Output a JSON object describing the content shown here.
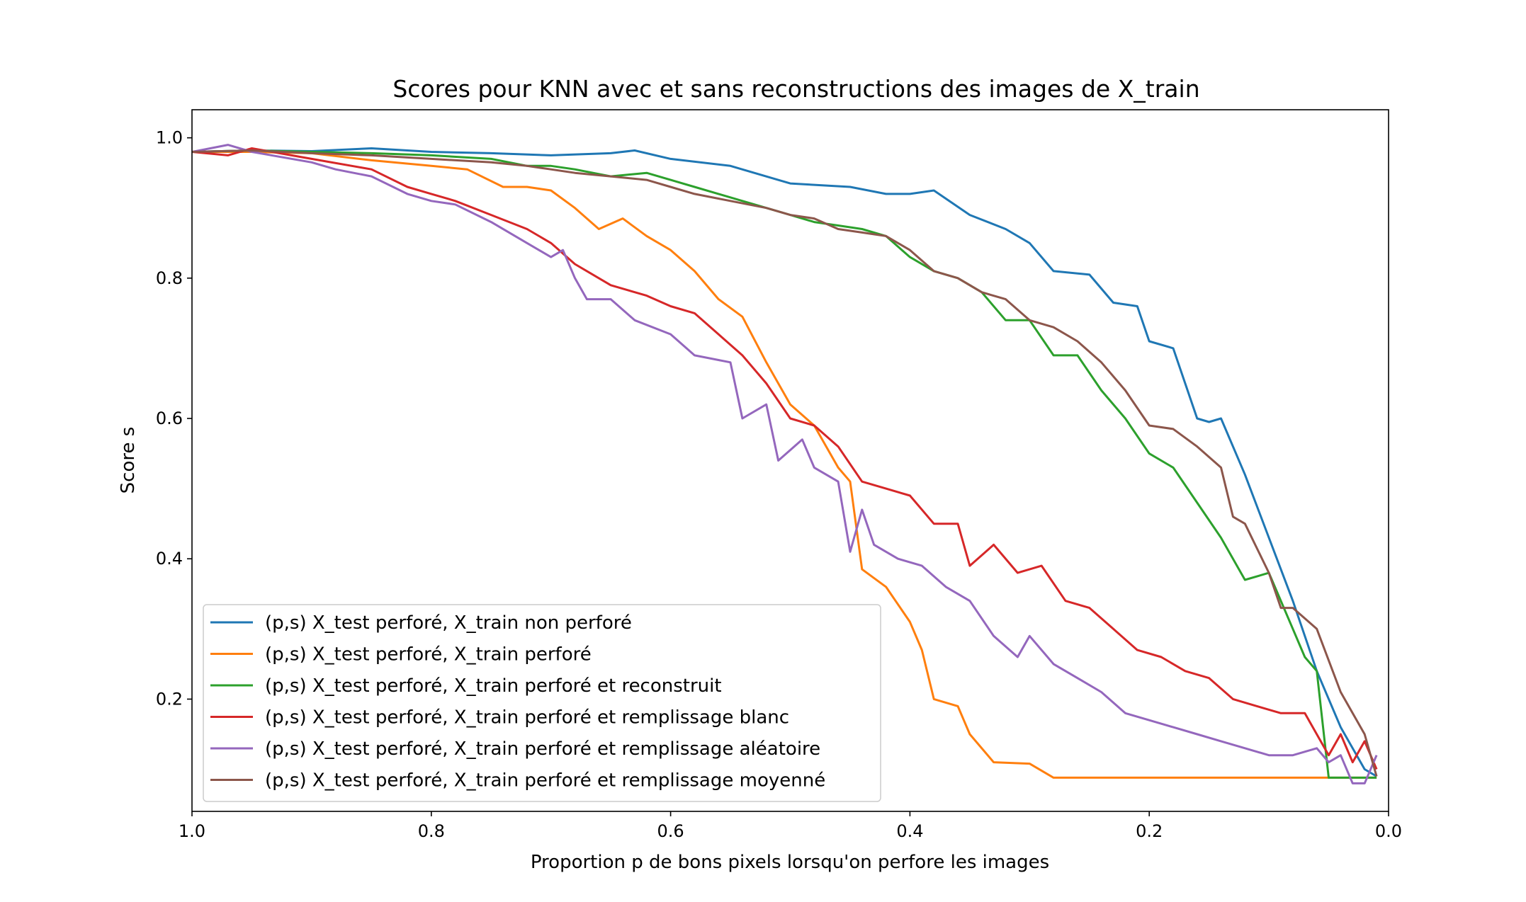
{
  "chart_data": {
    "type": "line",
    "title": "Scores pour KNN avec et sans reconstructions des images de X_train",
    "xlabel": "Proportion p de bons pixels lorsqu'on perfore les images",
    "ylabel": "Score s",
    "xlim": [
      1.0,
      0.0
    ],
    "ylim": [
      0.04,
      1.04
    ],
    "x_inverted": true,
    "grid": false,
    "legend_position": "lower-left",
    "x_ticks": [
      "1.0",
      "0.8",
      "0.6",
      "0.4",
      "0.2",
      "0.0"
    ],
    "y_ticks": [
      "0.2",
      "0.4",
      "0.6",
      "0.8",
      "1.0"
    ],
    "series": [
      {
        "name": "(p,s) X_test perforé, X_train non perforé",
        "color": "#1f77b4",
        "points": [
          [
            1.0,
            0.98
          ],
          [
            0.95,
            0.982
          ],
          [
            0.9,
            0.981
          ],
          [
            0.85,
            0.985
          ],
          [
            0.8,
            0.98
          ],
          [
            0.75,
            0.978
          ],
          [
            0.7,
            0.975
          ],
          [
            0.65,
            0.978
          ],
          [
            0.63,
            0.982
          ],
          [
            0.6,
            0.97
          ],
          [
            0.55,
            0.96
          ],
          [
            0.5,
            0.935
          ],
          [
            0.45,
            0.93
          ],
          [
            0.42,
            0.92
          ],
          [
            0.4,
            0.92
          ],
          [
            0.38,
            0.925
          ],
          [
            0.35,
            0.89
          ],
          [
            0.32,
            0.87
          ],
          [
            0.3,
            0.85
          ],
          [
            0.28,
            0.81
          ],
          [
            0.25,
            0.805
          ],
          [
            0.23,
            0.765
          ],
          [
            0.21,
            0.76
          ],
          [
            0.2,
            0.71
          ],
          [
            0.18,
            0.7
          ],
          [
            0.16,
            0.6
          ],
          [
            0.15,
            0.595
          ],
          [
            0.14,
            0.6
          ],
          [
            0.12,
            0.52
          ],
          [
            0.1,
            0.43
          ],
          [
            0.08,
            0.34
          ],
          [
            0.06,
            0.24
          ],
          [
            0.04,
            0.16
          ],
          [
            0.02,
            0.1
          ],
          [
            0.01,
            0.09
          ]
        ]
      },
      {
        "name": "(p,s) X_test perforé, X_train perforé",
        "color": "#ff7f0e",
        "points": [
          [
            1.0,
            0.98
          ],
          [
            0.95,
            0.98
          ],
          [
            0.9,
            0.978
          ],
          [
            0.85,
            0.968
          ],
          [
            0.8,
            0.96
          ],
          [
            0.77,
            0.955
          ],
          [
            0.74,
            0.93
          ],
          [
            0.72,
            0.93
          ],
          [
            0.7,
            0.925
          ],
          [
            0.68,
            0.9
          ],
          [
            0.66,
            0.87
          ],
          [
            0.64,
            0.885
          ],
          [
            0.62,
            0.86
          ],
          [
            0.6,
            0.84
          ],
          [
            0.58,
            0.81
          ],
          [
            0.56,
            0.77
          ],
          [
            0.54,
            0.745
          ],
          [
            0.52,
            0.68
          ],
          [
            0.5,
            0.62
          ],
          [
            0.48,
            0.59
          ],
          [
            0.46,
            0.53
          ],
          [
            0.45,
            0.51
          ],
          [
            0.44,
            0.385
          ],
          [
            0.42,
            0.36
          ],
          [
            0.4,
            0.31
          ],
          [
            0.39,
            0.27
          ],
          [
            0.38,
            0.2
          ],
          [
            0.36,
            0.19
          ],
          [
            0.35,
            0.15
          ],
          [
            0.33,
            0.11
          ],
          [
            0.3,
            0.108
          ],
          [
            0.28,
            0.088
          ],
          [
            0.25,
            0.088
          ],
          [
            0.2,
            0.088
          ],
          [
            0.1,
            0.088
          ],
          [
            0.01,
            0.088
          ]
        ]
      },
      {
        "name": "(p,s) X_test perforé, X_train perforé et reconstruit",
        "color": "#2ca02c",
        "points": [
          [
            1.0,
            0.98
          ],
          [
            0.95,
            0.982
          ],
          [
            0.9,
            0.98
          ],
          [
            0.85,
            0.978
          ],
          [
            0.8,
            0.975
          ],
          [
            0.75,
            0.97
          ],
          [
            0.72,
            0.96
          ],
          [
            0.7,
            0.96
          ],
          [
            0.68,
            0.955
          ],
          [
            0.65,
            0.945
          ],
          [
            0.62,
            0.95
          ],
          [
            0.6,
            0.94
          ],
          [
            0.58,
            0.93
          ],
          [
            0.56,
            0.92
          ],
          [
            0.54,
            0.91
          ],
          [
            0.52,
            0.9
          ],
          [
            0.5,
            0.89
          ],
          [
            0.48,
            0.88
          ],
          [
            0.46,
            0.875
          ],
          [
            0.44,
            0.87
          ],
          [
            0.42,
            0.86
          ],
          [
            0.4,
            0.83
          ],
          [
            0.38,
            0.81
          ],
          [
            0.36,
            0.8
          ],
          [
            0.34,
            0.78
          ],
          [
            0.32,
            0.74
          ],
          [
            0.3,
            0.74
          ],
          [
            0.28,
            0.69
          ],
          [
            0.26,
            0.69
          ],
          [
            0.24,
            0.64
          ],
          [
            0.22,
            0.6
          ],
          [
            0.2,
            0.55
          ],
          [
            0.18,
            0.53
          ],
          [
            0.16,
            0.48
          ],
          [
            0.14,
            0.43
          ],
          [
            0.12,
            0.37
          ],
          [
            0.1,
            0.38
          ],
          [
            0.08,
            0.3
          ],
          [
            0.07,
            0.26
          ],
          [
            0.06,
            0.24
          ],
          [
            0.05,
            0.088
          ],
          [
            0.03,
            0.088
          ],
          [
            0.01,
            0.088
          ]
        ]
      },
      {
        "name": "(p,s) X_test perforé, X_train perforé et remplissage blanc",
        "color": "#d62728",
        "points": [
          [
            1.0,
            0.98
          ],
          [
            0.97,
            0.975
          ],
          [
            0.95,
            0.985
          ],
          [
            0.9,
            0.97
          ],
          [
            0.85,
            0.955
          ],
          [
            0.82,
            0.93
          ],
          [
            0.8,
            0.92
          ],
          [
            0.78,
            0.91
          ],
          [
            0.75,
            0.89
          ],
          [
            0.72,
            0.87
          ],
          [
            0.7,
            0.85
          ],
          [
            0.68,
            0.82
          ],
          [
            0.65,
            0.79
          ],
          [
            0.62,
            0.775
          ],
          [
            0.6,
            0.76
          ],
          [
            0.58,
            0.75
          ],
          [
            0.56,
            0.72
          ],
          [
            0.54,
            0.69
          ],
          [
            0.52,
            0.65
          ],
          [
            0.5,
            0.6
          ],
          [
            0.48,
            0.59
          ],
          [
            0.46,
            0.56
          ],
          [
            0.44,
            0.51
          ],
          [
            0.42,
            0.5
          ],
          [
            0.4,
            0.49
          ],
          [
            0.38,
            0.45
          ],
          [
            0.36,
            0.45
          ],
          [
            0.35,
            0.39
          ],
          [
            0.33,
            0.42
          ],
          [
            0.31,
            0.38
          ],
          [
            0.29,
            0.39
          ],
          [
            0.27,
            0.34
          ],
          [
            0.25,
            0.33
          ],
          [
            0.23,
            0.3
          ],
          [
            0.21,
            0.27
          ],
          [
            0.19,
            0.26
          ],
          [
            0.17,
            0.24
          ],
          [
            0.15,
            0.23
          ],
          [
            0.13,
            0.2
          ],
          [
            0.11,
            0.19
          ],
          [
            0.09,
            0.18
          ],
          [
            0.07,
            0.18
          ],
          [
            0.05,
            0.12
          ],
          [
            0.04,
            0.15
          ],
          [
            0.03,
            0.11
          ],
          [
            0.02,
            0.14
          ],
          [
            0.01,
            0.1
          ]
        ]
      },
      {
        "name": "(p,s) X_test perforé, X_train perforé et remplissage aléatoire",
        "color": "#9467bd",
        "points": [
          [
            1.0,
            0.98
          ],
          [
            0.97,
            0.99
          ],
          [
            0.95,
            0.98
          ],
          [
            0.9,
            0.965
          ],
          [
            0.88,
            0.955
          ],
          [
            0.85,
            0.945
          ],
          [
            0.82,
            0.92
          ],
          [
            0.8,
            0.91
          ],
          [
            0.78,
            0.905
          ],
          [
            0.75,
            0.88
          ],
          [
            0.72,
            0.85
          ],
          [
            0.7,
            0.83
          ],
          [
            0.69,
            0.84
          ],
          [
            0.68,
            0.8
          ],
          [
            0.67,
            0.77
          ],
          [
            0.65,
            0.77
          ],
          [
            0.63,
            0.74
          ],
          [
            0.6,
            0.72
          ],
          [
            0.58,
            0.69
          ],
          [
            0.55,
            0.68
          ],
          [
            0.54,
            0.6
          ],
          [
            0.52,
            0.62
          ],
          [
            0.51,
            0.54
          ],
          [
            0.49,
            0.57
          ],
          [
            0.48,
            0.53
          ],
          [
            0.46,
            0.51
          ],
          [
            0.45,
            0.41
          ],
          [
            0.44,
            0.47
          ],
          [
            0.43,
            0.42
          ],
          [
            0.41,
            0.4
          ],
          [
            0.39,
            0.39
          ],
          [
            0.37,
            0.36
          ],
          [
            0.35,
            0.34
          ],
          [
            0.33,
            0.29
          ],
          [
            0.31,
            0.26
          ],
          [
            0.3,
            0.29
          ],
          [
            0.28,
            0.25
          ],
          [
            0.26,
            0.23
          ],
          [
            0.24,
            0.21
          ],
          [
            0.22,
            0.18
          ],
          [
            0.2,
            0.17
          ],
          [
            0.18,
            0.16
          ],
          [
            0.16,
            0.15
          ],
          [
            0.14,
            0.14
          ],
          [
            0.12,
            0.13
          ],
          [
            0.1,
            0.12
          ],
          [
            0.08,
            0.12
          ],
          [
            0.06,
            0.13
          ],
          [
            0.05,
            0.11
          ],
          [
            0.04,
            0.12
          ],
          [
            0.03,
            0.08
          ],
          [
            0.02,
            0.08
          ],
          [
            0.01,
            0.12
          ]
        ]
      },
      {
        "name": "(p,s) X_test perforé, X_train perforé et remplissage moyenné",
        "color": "#8c564b",
        "points": [
          [
            1.0,
            0.98
          ],
          [
            0.95,
            0.982
          ],
          [
            0.9,
            0.978
          ],
          [
            0.85,
            0.975
          ],
          [
            0.8,
            0.97
          ],
          [
            0.75,
            0.965
          ],
          [
            0.72,
            0.96
          ],
          [
            0.7,
            0.955
          ],
          [
            0.68,
            0.95
          ],
          [
            0.65,
            0.945
          ],
          [
            0.62,
            0.94
          ],
          [
            0.6,
            0.93
          ],
          [
            0.58,
            0.92
          ],
          [
            0.55,
            0.91
          ],
          [
            0.52,
            0.9
          ],
          [
            0.5,
            0.89
          ],
          [
            0.48,
            0.885
          ],
          [
            0.46,
            0.87
          ],
          [
            0.44,
            0.865
          ],
          [
            0.42,
            0.86
          ],
          [
            0.4,
            0.84
          ],
          [
            0.38,
            0.81
          ],
          [
            0.36,
            0.8
          ],
          [
            0.34,
            0.78
          ],
          [
            0.32,
            0.77
          ],
          [
            0.3,
            0.74
          ],
          [
            0.28,
            0.73
          ],
          [
            0.26,
            0.71
          ],
          [
            0.24,
            0.68
          ],
          [
            0.22,
            0.64
          ],
          [
            0.2,
            0.59
          ],
          [
            0.18,
            0.585
          ],
          [
            0.16,
            0.56
          ],
          [
            0.14,
            0.53
          ],
          [
            0.13,
            0.46
          ],
          [
            0.12,
            0.45
          ],
          [
            0.1,
            0.38
          ],
          [
            0.09,
            0.33
          ],
          [
            0.08,
            0.33
          ],
          [
            0.06,
            0.3
          ],
          [
            0.04,
            0.21
          ],
          [
            0.02,
            0.15
          ],
          [
            0.01,
            0.09
          ]
        ]
      }
    ]
  }
}
